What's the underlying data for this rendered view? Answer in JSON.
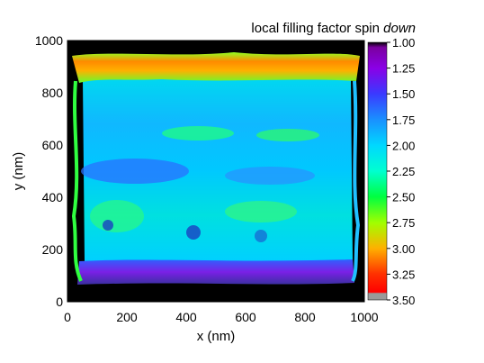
{
  "chart_data": {
    "type": "heatmap",
    "title": "local filling factor spin ",
    "title_emphasis": "down",
    "xlabel": "x (nm)",
    "ylabel": "y (nm)",
    "xlim": [
      0,
      1000
    ],
    "ylim": [
      0,
      1000
    ],
    "x_ticks": [
      "0",
      "200",
      "400",
      "600",
      "800",
      "1000"
    ],
    "y_ticks": [
      "0",
      "200",
      "400",
      "600",
      "800",
      "1000"
    ],
    "x_tick_values": [
      0,
      200,
      400,
      600,
      800,
      1000
    ],
    "y_tick_values": [
      0,
      200,
      400,
      600,
      800,
      1000
    ],
    "colorbar": {
      "range": [
        1.0,
        3.5
      ],
      "ticks": [
        "1.00",
        "1.25",
        "1.50",
        "1.75",
        "2.00",
        "2.25",
        "2.50",
        "2.75",
        "3.00",
        "3.25",
        "3.50"
      ],
      "tick_values": [
        1.0,
        1.25,
        1.5,
        1.75,
        2.0,
        2.25,
        2.5,
        2.75,
        3.0,
        3.25,
        3.5
      ],
      "colors": [
        "#000000",
        "#8a00e6",
        "#3a3aff",
        "#1aa0ff",
        "#00e0ff",
        "#00ff90",
        "#40ff00",
        "#d0ff00",
        "#ff9900",
        "#ff2200",
        "#9a9a9a"
      ]
    },
    "features": [
      {
        "region": "top band",
        "x": [
          60,
          960
        ],
        "y": [
          800,
          960
        ],
        "value": 3.0
      },
      {
        "region": "bottom band",
        "x": [
          60,
          960
        ],
        "y": [
          60,
          140
        ],
        "value": 1.3
      },
      {
        "region": "interior",
        "x": [
          60,
          960
        ],
        "y": [
          140,
          800
        ],
        "value": 2.05
      }
    ]
  }
}
